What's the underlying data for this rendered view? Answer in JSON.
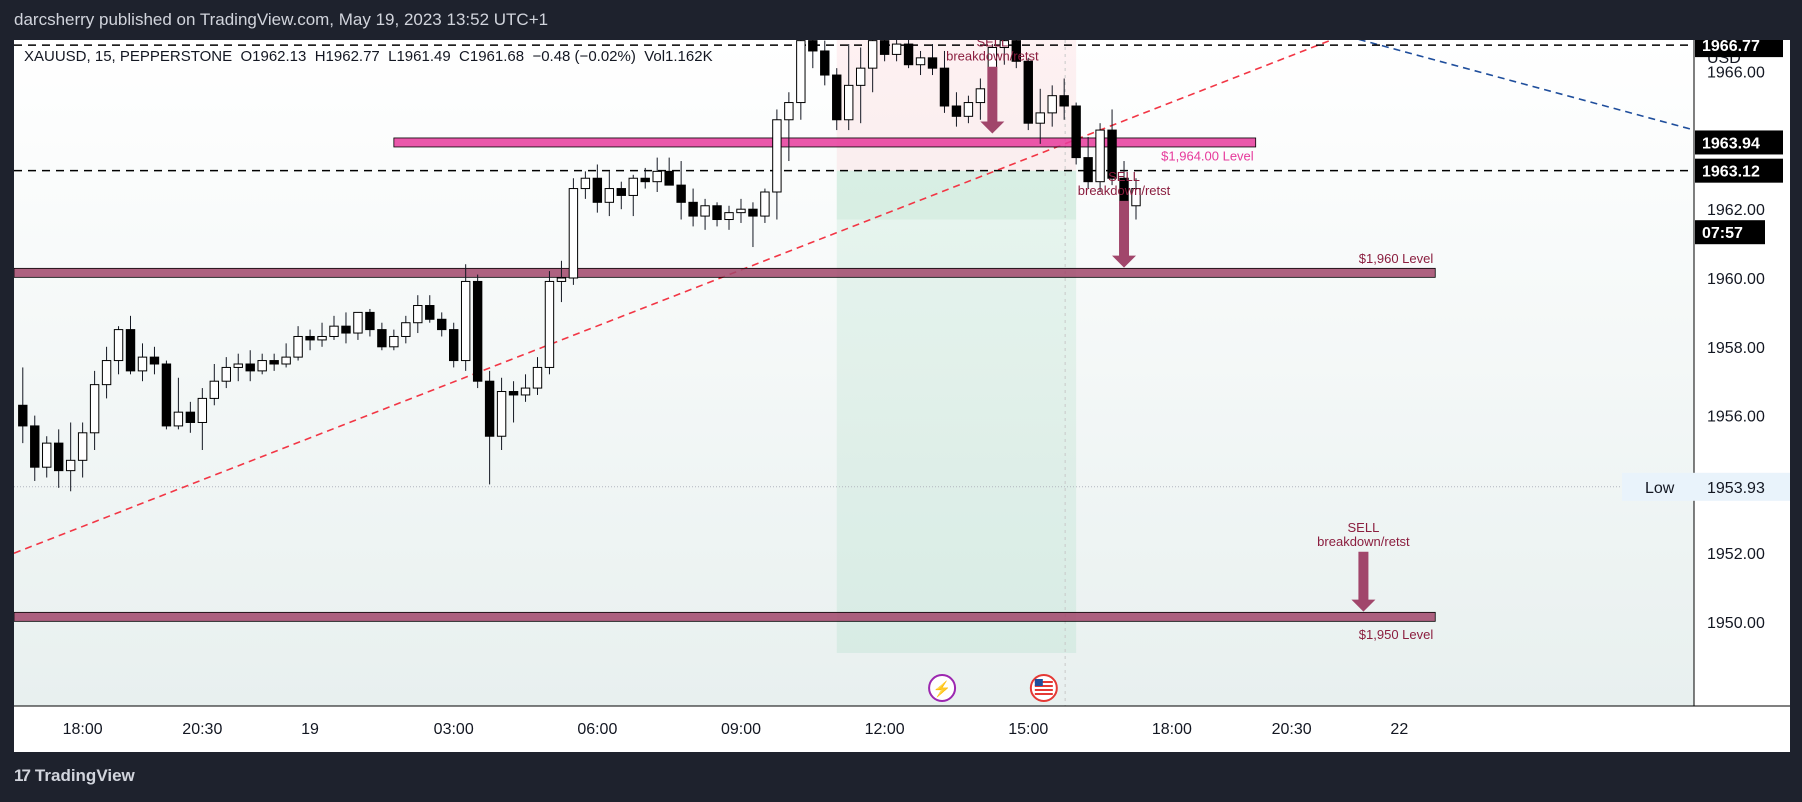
{
  "header": {
    "publisher_line": "darcsherry published on TradingView.com, May 19, 2023 13:52 UTC+1"
  },
  "legend": {
    "symbol": "XAUUSD, 15, PEPPERSTONE",
    "open": "O1962.13",
    "high": "H1962.77",
    "low": "L1961.49",
    "close": "C1961.68",
    "change": "−0.48 (−0.02%)",
    "volume": "Vol1.162K"
  },
  "footer": {
    "brand": "TradingView",
    "logo_mark": "17"
  },
  "colors": {
    "bull": "#ffffff",
    "bear": "#000000",
    "wick": "#131722",
    "zone": "#a1466b",
    "zone_pink": "#e6399b",
    "trend_red": "#f23645",
    "trend_blue": "#1f4e9c",
    "label_dark": "#000000",
    "axis_text": "#131722",
    "annotation": "#8b1e3f"
  },
  "chart_data": {
    "type": "candlestick",
    "timeframe": "15",
    "currency": "USD",
    "yticks": [
      "1966.00",
      "1964.00",
      "1962.00",
      "1960.00",
      "1958.00",
      "1956.00",
      "1954.00",
      "1952.00",
      "1950.00"
    ],
    "xticks": [
      {
        "label": "18:00",
        "bar": 5
      },
      {
        "label": "20:30",
        "bar": 15
      },
      {
        "label": "19",
        "bar": 24
      },
      {
        "label": "03:00",
        "bar": 36
      },
      {
        "label": "06:00",
        "bar": 48
      },
      {
        "label": "09:00",
        "bar": 60
      },
      {
        "label": "12:00",
        "bar": 72
      },
      {
        "label": "15:00",
        "bar": 84
      },
      {
        "label": "18:00",
        "bar": 96
      },
      {
        "label": "20:30",
        "bar": 106
      },
      {
        "label": "22",
        "bar": 115
      }
    ],
    "price_labels": [
      {
        "text": "1966.77",
        "value": 1966.77,
        "style": "dark"
      },
      {
        "text": "1963.94",
        "value": 1963.94,
        "style": "dark"
      },
      {
        "text": "1963.12",
        "value": 1963.12,
        "style": "dark"
      },
      {
        "text": "07:57",
        "value": 1961.68,
        "style": "dark"
      }
    ],
    "low_marker": {
      "label": "Low",
      "text": "1953.93",
      "value": 1953.93
    },
    "levels": [
      {
        "label": "$1,964.00 Level",
        "value": 1963.94,
        "from_bar": 31,
        "to_bar": 103,
        "color": "#e6399b"
      },
      {
        "label": "$1,960 Level",
        "value": 1960.15,
        "from_bar": 0,
        "to_bar": 118,
        "color": "#a1466b"
      },
      {
        "label": "$1,950 Level",
        "value": 1950.15,
        "from_bar": 0,
        "to_bar": 118,
        "color": "#a1466b"
      }
    ],
    "hlines": [
      1966.77,
      1963.12
    ],
    "annotations": [
      {
        "line1": "SELL",
        "line2": "breakdown/retst",
        "bar": 81,
        "value": 1966.2,
        "arrow_to": 1964.2
      },
      {
        "line1": "SELL",
        "line2": "breakdown/retst",
        "bar": 92,
        "value": 1962.3,
        "arrow_to": 1960.3
      },
      {
        "line1": "SELL",
        "line2": "breakdown/retst",
        "bar": 112,
        "value": 1952.1,
        "arrow_to": 1950.3
      }
    ],
    "position": {
      "entry": 1963.12,
      "stop": 1967.2,
      "target": 1949.1,
      "from_bar": 68.5,
      "to_bar": 88
    },
    "candles": [
      [
        1956.3,
        1957.4,
        1955.2,
        1955.7
      ],
      [
        1955.7,
        1956.0,
        1954.1,
        1954.5
      ],
      [
        1954.5,
        1955.4,
        1954.2,
        1955.2
      ],
      [
        1955.2,
        1955.6,
        1953.9,
        1954.4
      ],
      [
        1954.4,
        1955.8,
        1953.8,
        1954.7
      ],
      [
        1954.7,
        1955.8,
        1954.2,
        1955.5
      ],
      [
        1955.5,
        1957.3,
        1955.0,
        1956.9
      ],
      [
        1956.9,
        1958.0,
        1956.5,
        1957.6
      ],
      [
        1957.6,
        1958.6,
        1957.2,
        1958.5
      ],
      [
        1958.5,
        1958.9,
        1957.2,
        1957.3
      ],
      [
        1957.3,
        1958.1,
        1957.0,
        1957.7
      ],
      [
        1957.7,
        1958.0,
        1957.2,
        1957.5
      ],
      [
        1957.5,
        1957.6,
        1955.6,
        1955.7
      ],
      [
        1955.7,
        1957.1,
        1955.6,
        1956.1
      ],
      [
        1956.1,
        1956.4,
        1955.5,
        1955.8
      ],
      [
        1955.8,
        1956.8,
        1955.0,
        1956.5
      ],
      [
        1956.5,
        1957.5,
        1956.3,
        1957.0
      ],
      [
        1957.0,
        1957.7,
        1956.8,
        1957.4
      ],
      [
        1957.4,
        1957.8,
        1957.0,
        1957.5
      ],
      [
        1957.5,
        1957.9,
        1957.0,
        1957.3
      ],
      [
        1957.3,
        1957.8,
        1957.2,
        1957.6
      ],
      [
        1957.6,
        1957.8,
        1957.3,
        1957.5
      ],
      [
        1957.5,
        1958.1,
        1957.4,
        1957.7
      ],
      [
        1957.7,
        1958.6,
        1957.6,
        1958.3
      ],
      [
        1958.3,
        1958.5,
        1957.9,
        1958.2
      ],
      [
        1958.2,
        1958.7,
        1958.0,
        1958.3
      ],
      [
        1958.3,
        1958.9,
        1958.2,
        1958.6
      ],
      [
        1958.6,
        1959.0,
        1958.1,
        1958.4
      ],
      [
        1958.4,
        1959.0,
        1958.2,
        1959.0
      ],
      [
        1959.0,
        1959.1,
        1958.3,
        1958.5
      ],
      [
        1958.5,
        1958.7,
        1957.9,
        1958.0
      ],
      [
        1958.0,
        1958.5,
        1957.9,
        1958.3
      ],
      [
        1958.3,
        1958.9,
        1958.1,
        1958.7
      ],
      [
        1958.7,
        1959.5,
        1958.4,
        1959.2
      ],
      [
        1959.2,
        1959.5,
        1958.7,
        1958.8
      ],
      [
        1958.8,
        1959.0,
        1958.3,
        1958.5
      ],
      [
        1958.5,
        1958.7,
        1957.4,
        1957.6
      ],
      [
        1957.6,
        1960.4,
        1957.3,
        1959.9
      ],
      [
        1959.9,
        1960.1,
        1956.8,
        1957.0
      ],
      [
        1957.0,
        1957.3,
        1954.0,
        1955.4
      ],
      [
        1955.4,
        1957.1,
        1955.0,
        1956.7
      ],
      [
        1956.7,
        1957.0,
        1955.8,
        1956.6
      ],
      [
        1956.6,
        1957.2,
        1956.4,
        1956.8
      ],
      [
        1956.8,
        1957.7,
        1956.6,
        1957.4
      ],
      [
        1957.4,
        1960.2,
        1957.2,
        1959.9
      ],
      [
        1959.9,
        1960.5,
        1959.3,
        1960.0
      ],
      [
        1960.0,
        1962.9,
        1959.8,
        1962.6
      ],
      [
        1962.6,
        1963.1,
        1962.3,
        1962.9
      ],
      [
        1962.9,
        1963.3,
        1961.9,
        1962.2
      ],
      [
        1962.2,
        1963.1,
        1961.8,
        1962.6
      ],
      [
        1962.6,
        1962.8,
        1962.0,
        1962.4
      ],
      [
        1962.4,
        1963.0,
        1961.8,
        1962.9
      ],
      [
        1962.9,
        1963.2,
        1962.6,
        1962.8
      ],
      [
        1962.8,
        1963.5,
        1962.5,
        1963.1
      ],
      [
        1963.1,
        1963.5,
        1962.8,
        1962.7
      ],
      [
        1962.7,
        1963.4,
        1961.7,
        1962.2
      ],
      [
        1962.2,
        1962.6,
        1961.5,
        1961.8
      ],
      [
        1961.8,
        1962.3,
        1961.4,
        1962.1
      ],
      [
        1962.1,
        1962.2,
        1961.5,
        1961.7
      ],
      [
        1961.7,
        1962.1,
        1961.4,
        1961.9
      ],
      [
        1961.9,
        1962.3,
        1961.6,
        1962.0
      ],
      [
        1962.0,
        1962.2,
        1960.9,
        1961.8
      ],
      [
        1961.8,
        1962.6,
        1961.6,
        1962.5
      ],
      [
        1962.5,
        1964.9,
        1961.7,
        1964.6
      ],
      [
        1964.6,
        1965.4,
        1963.4,
        1965.1
      ],
      [
        1965.1,
        1967.2,
        1964.6,
        1966.9
      ],
      [
        1966.9,
        1967.5,
        1966.1,
        1966.6
      ],
      [
        1966.6,
        1966.9,
        1965.6,
        1965.9
      ],
      [
        1965.9,
        1966.1,
        1964.3,
        1964.6
      ],
      [
        1964.6,
        1966.8,
        1964.3,
        1965.6
      ],
      [
        1965.6,
        1966.7,
        1964.5,
        1966.1
      ],
      [
        1966.1,
        1967.3,
        1965.4,
        1966.9
      ],
      [
        1966.9,
        1967.2,
        1966.3,
        1966.5
      ],
      [
        1966.5,
        1967.0,
        1966.3,
        1966.8
      ],
      [
        1966.8,
        1967.1,
        1966.1,
        1966.2
      ],
      [
        1966.2,
        1966.6,
        1965.9,
        1966.4
      ],
      [
        1966.4,
        1966.8,
        1965.9,
        1966.1
      ],
      [
        1966.1,
        1966.6,
        1964.8,
        1965.0
      ],
      [
        1965.0,
        1965.4,
        1964.4,
        1964.7
      ],
      [
        1964.7,
        1965.3,
        1964.5,
        1965.1
      ],
      [
        1965.1,
        1965.8,
        1964.6,
        1965.5
      ],
      [
        1965.5,
        1966.8,
        1965.3,
        1966.7
      ],
      [
        1966.7,
        1967.4,
        1966.2,
        1966.9
      ],
      [
        1966.9,
        1967.6,
        1966.1,
        1966.3
      ],
      [
        1966.3,
        1966.4,
        1964.3,
        1964.5
      ],
      [
        1964.5,
        1965.5,
        1963.9,
        1964.8
      ],
      [
        1964.8,
        1965.6,
        1964.4,
        1965.3
      ],
      [
        1965.3,
        1965.8,
        1964.6,
        1965.0
      ],
      [
        1965.0,
        1965.1,
        1963.3,
        1963.5
      ],
      [
        1963.5,
        1964.1,
        1962.6,
        1962.8
      ],
      [
        1962.8,
        1964.5,
        1962.5,
        1964.3
      ],
      [
        1964.3,
        1964.9,
        1962.7,
        1962.9
      ],
      [
        1962.9,
        1963.4,
        1961.6,
        1962.1
      ],
      [
        1962.1,
        1962.9,
        1961.7,
        1962.6
      ]
    ]
  }
}
